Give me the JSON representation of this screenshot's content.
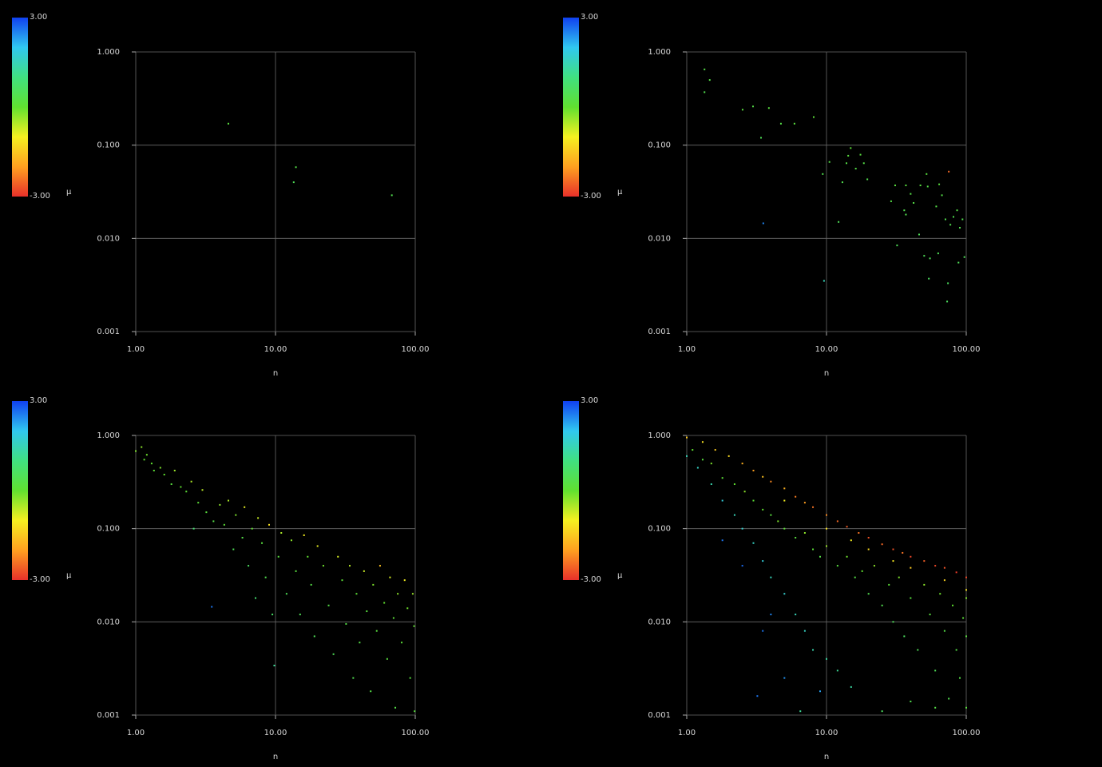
{
  "chart_data": [
    {
      "type": "scatter",
      "xlabel": "n",
      "xscale": "log",
      "yscale": "log",
      "grid": true,
      "xlim": [
        1,
        100
      ],
      "ylim": [
        0.001,
        1
      ],
      "xticks": [
        {
          "value": 1,
          "label": "1.00"
        },
        {
          "value": 10,
          "label": "10.00"
        },
        {
          "value": 100,
          "label": "100.00"
        }
      ],
      "yticks": [
        0.001,
        {
          "value": 0.01,
          "label": "0.010"
        },
        {
          "value": 0.1,
          "label": "0.100"
        },
        {
          "value": 1,
          "label": "1.000"
        }
      ],
      "colorbar": {
        "label": "μ",
        "lim": [
          -3,
          3
        ],
        "ticks": [
          {
            "value": 3,
            "label": "3.00"
          },
          {
            "value": -3,
            "label": "-3.00"
          }
        ],
        "colormap": [
          "#e8302a",
          "#ffa020",
          "#f5f020",
          "#60e030",
          "#40e080",
          "#30c8f0",
          "#1040f0"
        ]
      },
      "series": [
        {
          "x": [
            4.6,
            14,
            13.5,
            68
          ],
          "values": [
            0.17,
            0.058,
            0.04,
            0.029
          ],
          "mu": [
            0.2,
            0.3,
            0.5,
            0.4
          ]
        }
      ]
    },
    {
      "type": "scatter",
      "xlabel": "n",
      "xscale": "log",
      "yscale": "log",
      "grid": true,
      "xlim": [
        1,
        100
      ],
      "ylim": [
        0.001,
        1
      ],
      "xticks": [
        {
          "value": 1,
          "label": "1.00"
        },
        {
          "value": 10,
          "label": "10.00"
        },
        {
          "value": 100,
          "label": "100.00"
        }
      ],
      "yticks": [
        0.001,
        {
          "value": 0.01,
          "label": "0.010"
        },
        {
          "value": 0.1,
          "label": "0.100"
        },
        {
          "value": 1,
          "label": "1.000"
        }
      ],
      "colorbar": {
        "label": "μ",
        "lim": [
          -3,
          3
        ],
        "ticks": [
          {
            "value": 3,
            "label": "3.00"
          },
          {
            "value": -3,
            "label": "-3.00"
          }
        ],
        "colormap": [
          "#e8302a",
          "#ffa020",
          "#f5f020",
          "#60e030",
          "#40e080",
          "#30c8f0",
          "#1040f0"
        ]
      },
      "series": [
        {
          "x": [
            1.34,
            1.34,
            1.46,
            2.51,
            2.98,
            3.87,
            3.4,
            4.72,
            5.9,
            8.1,
            3.53,
            9.4,
            9.6,
            10.5,
            12.2,
            13,
            13.9,
            14.9,
            14.3,
            16.2,
            17.5,
            18.5,
            19.6,
            29,
            31,
            32,
            36,
            37,
            37,
            40,
            42,
            46,
            47,
            50,
            52,
            53,
            54,
            55,
            61,
            64,
            63,
            67,
            71,
            73,
            75,
            74,
            77,
            81,
            86,
            88,
            90,
            94,
            97
          ],
          "values": [
            0.65,
            0.37,
            0.5,
            0.24,
            0.26,
            0.25,
            0.12,
            0.17,
            0.17,
            0.2,
            0.0145,
            0.049,
            0.0035,
            0.066,
            0.015,
            0.04,
            0.064,
            0.093,
            0.077,
            0.056,
            0.079,
            0.064,
            0.043,
            0.025,
            0.037,
            0.0084,
            0.02,
            0.037,
            0.018,
            0.03,
            0.024,
            0.011,
            0.037,
            0.0065,
            0.049,
            0.036,
            0.0037,
            0.0061,
            0.022,
            0.038,
            0.0069,
            0.029,
            0.016,
            0.0021,
            0.052,
            0.0033,
            0.014,
            0.017,
            0.02,
            0.0055,
            0.013,
            0.016,
            0.0063
          ],
          "mu": [
            0.3,
            0.4,
            0.3,
            0.2,
            0.3,
            0.2,
            0.5,
            0.3,
            0.2,
            0.1,
            2.5,
            0.4,
            1.5,
            0.3,
            0.5,
            0.4,
            0.3,
            0.1,
            0.2,
            0.3,
            0.2,
            0.3,
            0.4,
            0.3,
            0.2,
            0.5,
            0.4,
            0.2,
            0.4,
            0.3,
            0.3,
            0.5,
            0.2,
            0.5,
            0.2,
            0.3,
            0.6,
            0.5,
            0.3,
            0.2,
            0.5,
            0.3,
            0.4,
            0.6,
            -2.5,
            0.6,
            0.4,
            0.4,
            0.3,
            0.5,
            0.4,
            0.4,
            0.5
          ]
        }
      ]
    },
    {
      "type": "scatter",
      "xlabel": "n",
      "xscale": "log",
      "yscale": "log",
      "grid": true,
      "xlim": [
        1,
        100
      ],
      "ylim": [
        0.001,
        1
      ],
      "xticks": [
        {
          "value": 1,
          "label": "1.00"
        },
        {
          "value": 10,
          "label": "10.00"
        },
        {
          "value": 100,
          "label": "100.00"
        }
      ],
      "yticks": [
        0.001,
        {
          "value": 0.01,
          "label": "0.010"
        },
        {
          "value": 0.1,
          "label": "0.100"
        },
        {
          "value": 1,
          "label": "1.000"
        }
      ],
      "colorbar": {
        "label": "μ",
        "lim": [
          -3,
          3
        ],
        "ticks": [
          {
            "value": 3,
            "label": "3.00"
          },
          {
            "value": -3,
            "label": "-3.00"
          }
        ],
        "colormap": [
          "#e8302a",
          "#ffa020",
          "#f5f020",
          "#60e030",
          "#40e080",
          "#30c8f0",
          "#1040f0"
        ]
      },
      "series": [
        {
          "x": [
            1,
            1.1,
            1.15,
            1.2,
            1.3,
            1.35,
            1.5,
            1.6,
            1.8,
            1.9,
            2.1,
            2.3,
            2.5,
            2.6,
            2.8,
            3,
            3.2,
            3.5,
            3.6,
            4,
            4.3,
            4.6,
            5,
            5.2,
            5.8,
            6,
            6.4,
            6.8,
            7.2,
            7.5,
            8,
            8.5,
            9,
            9.5,
            9.8,
            10.5,
            11,
            12,
            13,
            14,
            15,
            16,
            17,
            18,
            19,
            20,
            22,
            24,
            26,
            28,
            30,
            32,
            34,
            36,
            38,
            40,
            43,
            45,
            48,
            50,
            53,
            56,
            60,
            63,
            66,
            70,
            72,
            75,
            80,
            84,
            88,
            92,
            96,
            98,
            99
          ],
          "values": [
            0.68,
            0.75,
            0.55,
            0.62,
            0.5,
            0.42,
            0.45,
            0.38,
            0.3,
            0.42,
            0.28,
            0.25,
            0.32,
            0.1,
            0.19,
            0.26,
            0.15,
            0.0145,
            0.12,
            0.18,
            0.11,
            0.2,
            0.06,
            0.14,
            0.08,
            0.17,
            0.04,
            0.1,
            0.018,
            0.13,
            0.07,
            0.03,
            0.11,
            0.012,
            0.0034,
            0.05,
            0.09,
            0.02,
            0.075,
            0.035,
            0.012,
            0.085,
            0.05,
            0.025,
            0.007,
            0.065,
            0.04,
            0.015,
            0.0045,
            0.05,
            0.028,
            0.0095,
            0.04,
            0.0025,
            0.02,
            0.006,
            0.035,
            0.013,
            0.0018,
            0.025,
            0.008,
            0.04,
            0.016,
            0.004,
            0.03,
            0.011,
            0.0012,
            0.02,
            0.006,
            0.028,
            0.014,
            0.0025,
            0.02,
            0.009,
            0.0011
          ],
          "mu": [
            -0.2,
            -0.3,
            0,
            -0.1,
            0,
            0.1,
            -0.2,
            0,
            0.2,
            -0.4,
            0,
            0.1,
            -0.5,
            0.8,
            0.1,
            -0.6,
            0.2,
            2.6,
            0.3,
            -0.3,
            0.1,
            -0.5,
            0.5,
            -0.2,
            0.3,
            -0.9,
            0.6,
            0,
            0.8,
            -0.7,
            0.2,
            0.4,
            -1.2,
            0.7,
            1.2,
            0.2,
            -0.5,
            0.5,
            -0.3,
            0.2,
            0.5,
            -1,
            0,
            0.3,
            0.5,
            -0.9,
            -0.1,
            0.3,
            0.5,
            -0.8,
            0.1,
            0.3,
            -0.6,
            0.4,
            0.1,
            0.3,
            -0.7,
            0.2,
            0.3,
            -0.2,
            0.2,
            -1.6,
            0,
            0.2,
            -0.8,
            0.1,
            0.3,
            -0.3,
            0.1,
            -1,
            -0.1,
            0.2,
            -0.4,
            0,
            0.2
          ]
        }
      ]
    },
    {
      "type": "scatter",
      "xlabel": "n",
      "xscale": "log",
      "yscale": "log",
      "grid": true,
      "xlim": [
        1,
        100
      ],
      "ylim": [
        0.001,
        1
      ],
      "xticks": [
        {
          "value": 1,
          "label": "1.00"
        },
        {
          "value": 10,
          "label": "10.00"
        },
        {
          "value": 100,
          "label": "100.00"
        }
      ],
      "yticks": [
        0.001,
        {
          "value": 0.01,
          "label": "0.010"
        },
        {
          "value": 0.1,
          "label": "0.100"
        },
        {
          "value": 1,
          "label": "1.000"
        }
      ],
      "colorbar": {
        "label": "μ",
        "lim": [
          -3,
          3
        ],
        "ticks": [
          {
            "value": 3,
            "label": "3.00"
          },
          {
            "value": -3,
            "label": "-3.00"
          }
        ],
        "colormap": [
          "#e8302a",
          "#ffa020",
          "#f5f020",
          "#60e030",
          "#40e080",
          "#30c8f0",
          "#1040f0"
        ]
      },
      "series": [
        {
          "x": [
            1,
            1.3,
            1.6,
            2,
            2.5,
            3,
            3.5,
            4,
            5,
            6,
            7,
            8,
            10,
            12,
            14,
            17,
            20,
            25,
            30,
            35,
            40,
            50,
            60,
            70,
            85,
            100,
            5,
            10,
            20,
            40,
            70,
            100,
            15,
            30,
            1.1,
            1.3,
            1.5,
            1.8,
            2.2,
            2.6,
            3,
            3.5,
            4,
            4.5,
            5,
            6,
            7,
            8,
            9,
            10,
            12,
            14,
            16,
            18,
            20,
            22,
            25,
            28,
            30,
            33,
            36,
            40,
            45,
            50,
            55,
            60,
            65,
            70,
            75,
            80,
            85,
            90,
            95,
            100,
            100,
            100,
            60,
            40,
            25,
            1,
            1.2,
            1.5,
            1.8,
            2.2,
            2.5,
            3,
            3.5,
            4,
            5,
            6,
            7,
            8,
            10,
            12,
            15,
            6.5,
            1.8,
            2.5,
            3.2,
            4,
            5,
            3.5,
            9
          ],
          "values": [
            0.95,
            0.85,
            0.7,
            0.6,
            0.5,
            0.42,
            0.36,
            0.32,
            0.27,
            0.22,
            0.19,
            0.17,
            0.14,
            0.12,
            0.105,
            0.09,
            0.08,
            0.068,
            0.06,
            0.055,
            0.05,
            0.045,
            0.04,
            0.038,
            0.034,
            0.03,
            0.2,
            0.1,
            0.06,
            0.038,
            0.028,
            0.022,
            0.075,
            0.045,
            0.7,
            0.55,
            0.5,
            0.35,
            0.3,
            0.25,
            0.2,
            0.16,
            0.14,
            0.12,
            0.1,
            0.08,
            0.09,
            0.06,
            0.05,
            0.065,
            0.04,
            0.05,
            0.03,
            0.035,
            0.02,
            0.04,
            0.015,
            0.025,
            0.01,
            0.03,
            0.007,
            0.018,
            0.005,
            0.025,
            0.012,
            0.003,
            0.02,
            0.008,
            0.0015,
            0.015,
            0.005,
            0.0025,
            0.011,
            0.018,
            0.007,
            0.0012,
            0.0012,
            0.0014,
            0.0011,
            0.6,
            0.45,
            0.3,
            0.2,
            0.14,
            0.1,
            0.07,
            0.045,
            0.03,
            0.02,
            0.012,
            0.008,
            0.005,
            0.004,
            0.003,
            0.002,
            0.0011,
            0.075,
            0.04,
            0.0016,
            0.012,
            0.0025,
            0.008,
            0.0018
          ],
          "mu": [
            -1.5,
            -1.2,
            -1.5,
            -1.3,
            -1.8,
            -2,
            -1.6,
            -2.2,
            -1.8,
            -2.3,
            -2,
            -2.4,
            -2.2,
            -2.5,
            -2.6,
            -2.4,
            -2.7,
            -2.5,
            -2.7,
            -2.4,
            -2.8,
            -2.6,
            -2.8,
            -2.7,
            -2.9,
            -2.8,
            -1,
            -1.2,
            -1.3,
            -1.5,
            -1.4,
            -1.2,
            -1,
            -1.1,
            0,
            0.2,
            -0.2,
            0.1,
            0,
            -0.3,
            0.1,
            0,
            0.2,
            -0.2,
            0.1,
            0.2,
            -0.3,
            0.1,
            0.3,
            -0.4,
            0.2,
            -0.1,
            0.3,
            0,
            0.4,
            -0.3,
            0.4,
            0.1,
            0.5,
            -0.2,
            0.6,
            0.2,
            0.5,
            -0.3,
            0.2,
            0.5,
            -0.1,
            0.3,
            0.4,
            0,
            0.3,
            0.3,
            0.1,
            -0.2,
            0.2,
            0.2,
            0.3,
            0.4,
            0.6,
            1.5,
            1.6,
            1.4,
            1.8,
            1.5,
            1.7,
            1.6,
            1.8,
            1.5,
            1.7,
            1.5,
            1.6,
            1.4,
            1.3,
            1.2,
            1.3,
            1.2,
            2.6,
            2.7,
            2.6,
            2.5,
            2.4,
            2.6,
            2.3
          ]
        }
      ]
    }
  ]
}
